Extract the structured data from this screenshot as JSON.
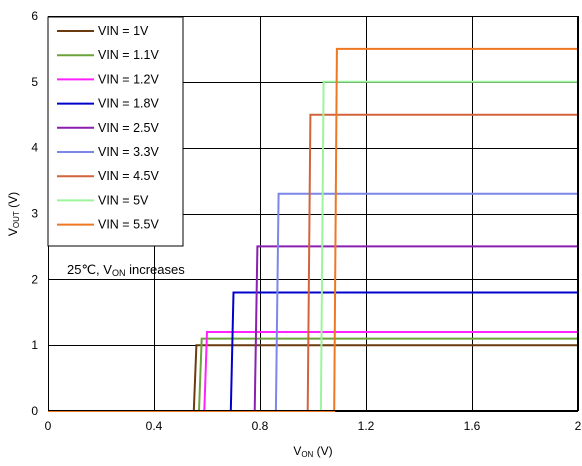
{
  "chart_data": {
    "type": "line",
    "xlabel": {
      "main": "V",
      "sub": "ON",
      "unit": " (V)"
    },
    "ylabel": {
      "main": "V",
      "sub": "OUT",
      "unit": " (V)"
    },
    "xlim": [
      0,
      2
    ],
    "ylim": [
      0,
      6
    ],
    "x_ticks": [
      0,
      0.4,
      0.8,
      1.2,
      1.6,
      2
    ],
    "x_tick_labels": [
      "0",
      "0.4",
      "0.8",
      "1.2",
      "1.6",
      "2"
    ],
    "y_ticks": [
      0,
      1,
      2,
      3,
      4,
      5,
      6
    ],
    "y_tick_labels": [
      "0",
      "1",
      "2",
      "3",
      "4",
      "5",
      "6"
    ],
    "grid": true,
    "legend_position": "top-left",
    "annotation": {
      "pre": "25℃, V",
      "sub": "ON",
      "post": " increases"
    },
    "series": [
      {
        "name": "VIN = 1V",
        "color": "#6b3a0e",
        "threshold": 0.55,
        "rise_end": 0.56,
        "vout": 1.0
      },
      {
        "name": "VIN = 1.1V",
        "color": "#6aa23c",
        "threshold": 0.57,
        "rise_end": 0.58,
        "vout": 1.1
      },
      {
        "name": "VIN = 1.2V",
        "color": "#ff22ff",
        "threshold": 0.59,
        "rise_end": 0.6,
        "vout": 1.2
      },
      {
        "name": "VIN = 1.8V",
        "color": "#0000cc",
        "threshold": 0.69,
        "rise_end": 0.7,
        "vout": 1.8
      },
      {
        "name": "VIN = 2.5V",
        "color": "#8a1fb0",
        "threshold": 0.78,
        "rise_end": 0.79,
        "vout": 2.5
      },
      {
        "name": "VIN = 3.3V",
        "color": "#7b86e8",
        "threshold": 0.86,
        "rise_end": 0.87,
        "vout": 3.3
      },
      {
        "name": "VIN = 4.5V",
        "color": "#d2643c",
        "threshold": 0.98,
        "rise_end": 0.99,
        "vout": 4.5
      },
      {
        "name": "VIN = 5V",
        "color": "#9cf59c",
        "threshold": 1.03,
        "rise_end": 1.04,
        "vout": 5.0
      },
      {
        "name": "VIN = 5.5V",
        "color": "#ee7722",
        "threshold": 1.08,
        "rise_end": 1.09,
        "vout": 5.5
      }
    ]
  }
}
